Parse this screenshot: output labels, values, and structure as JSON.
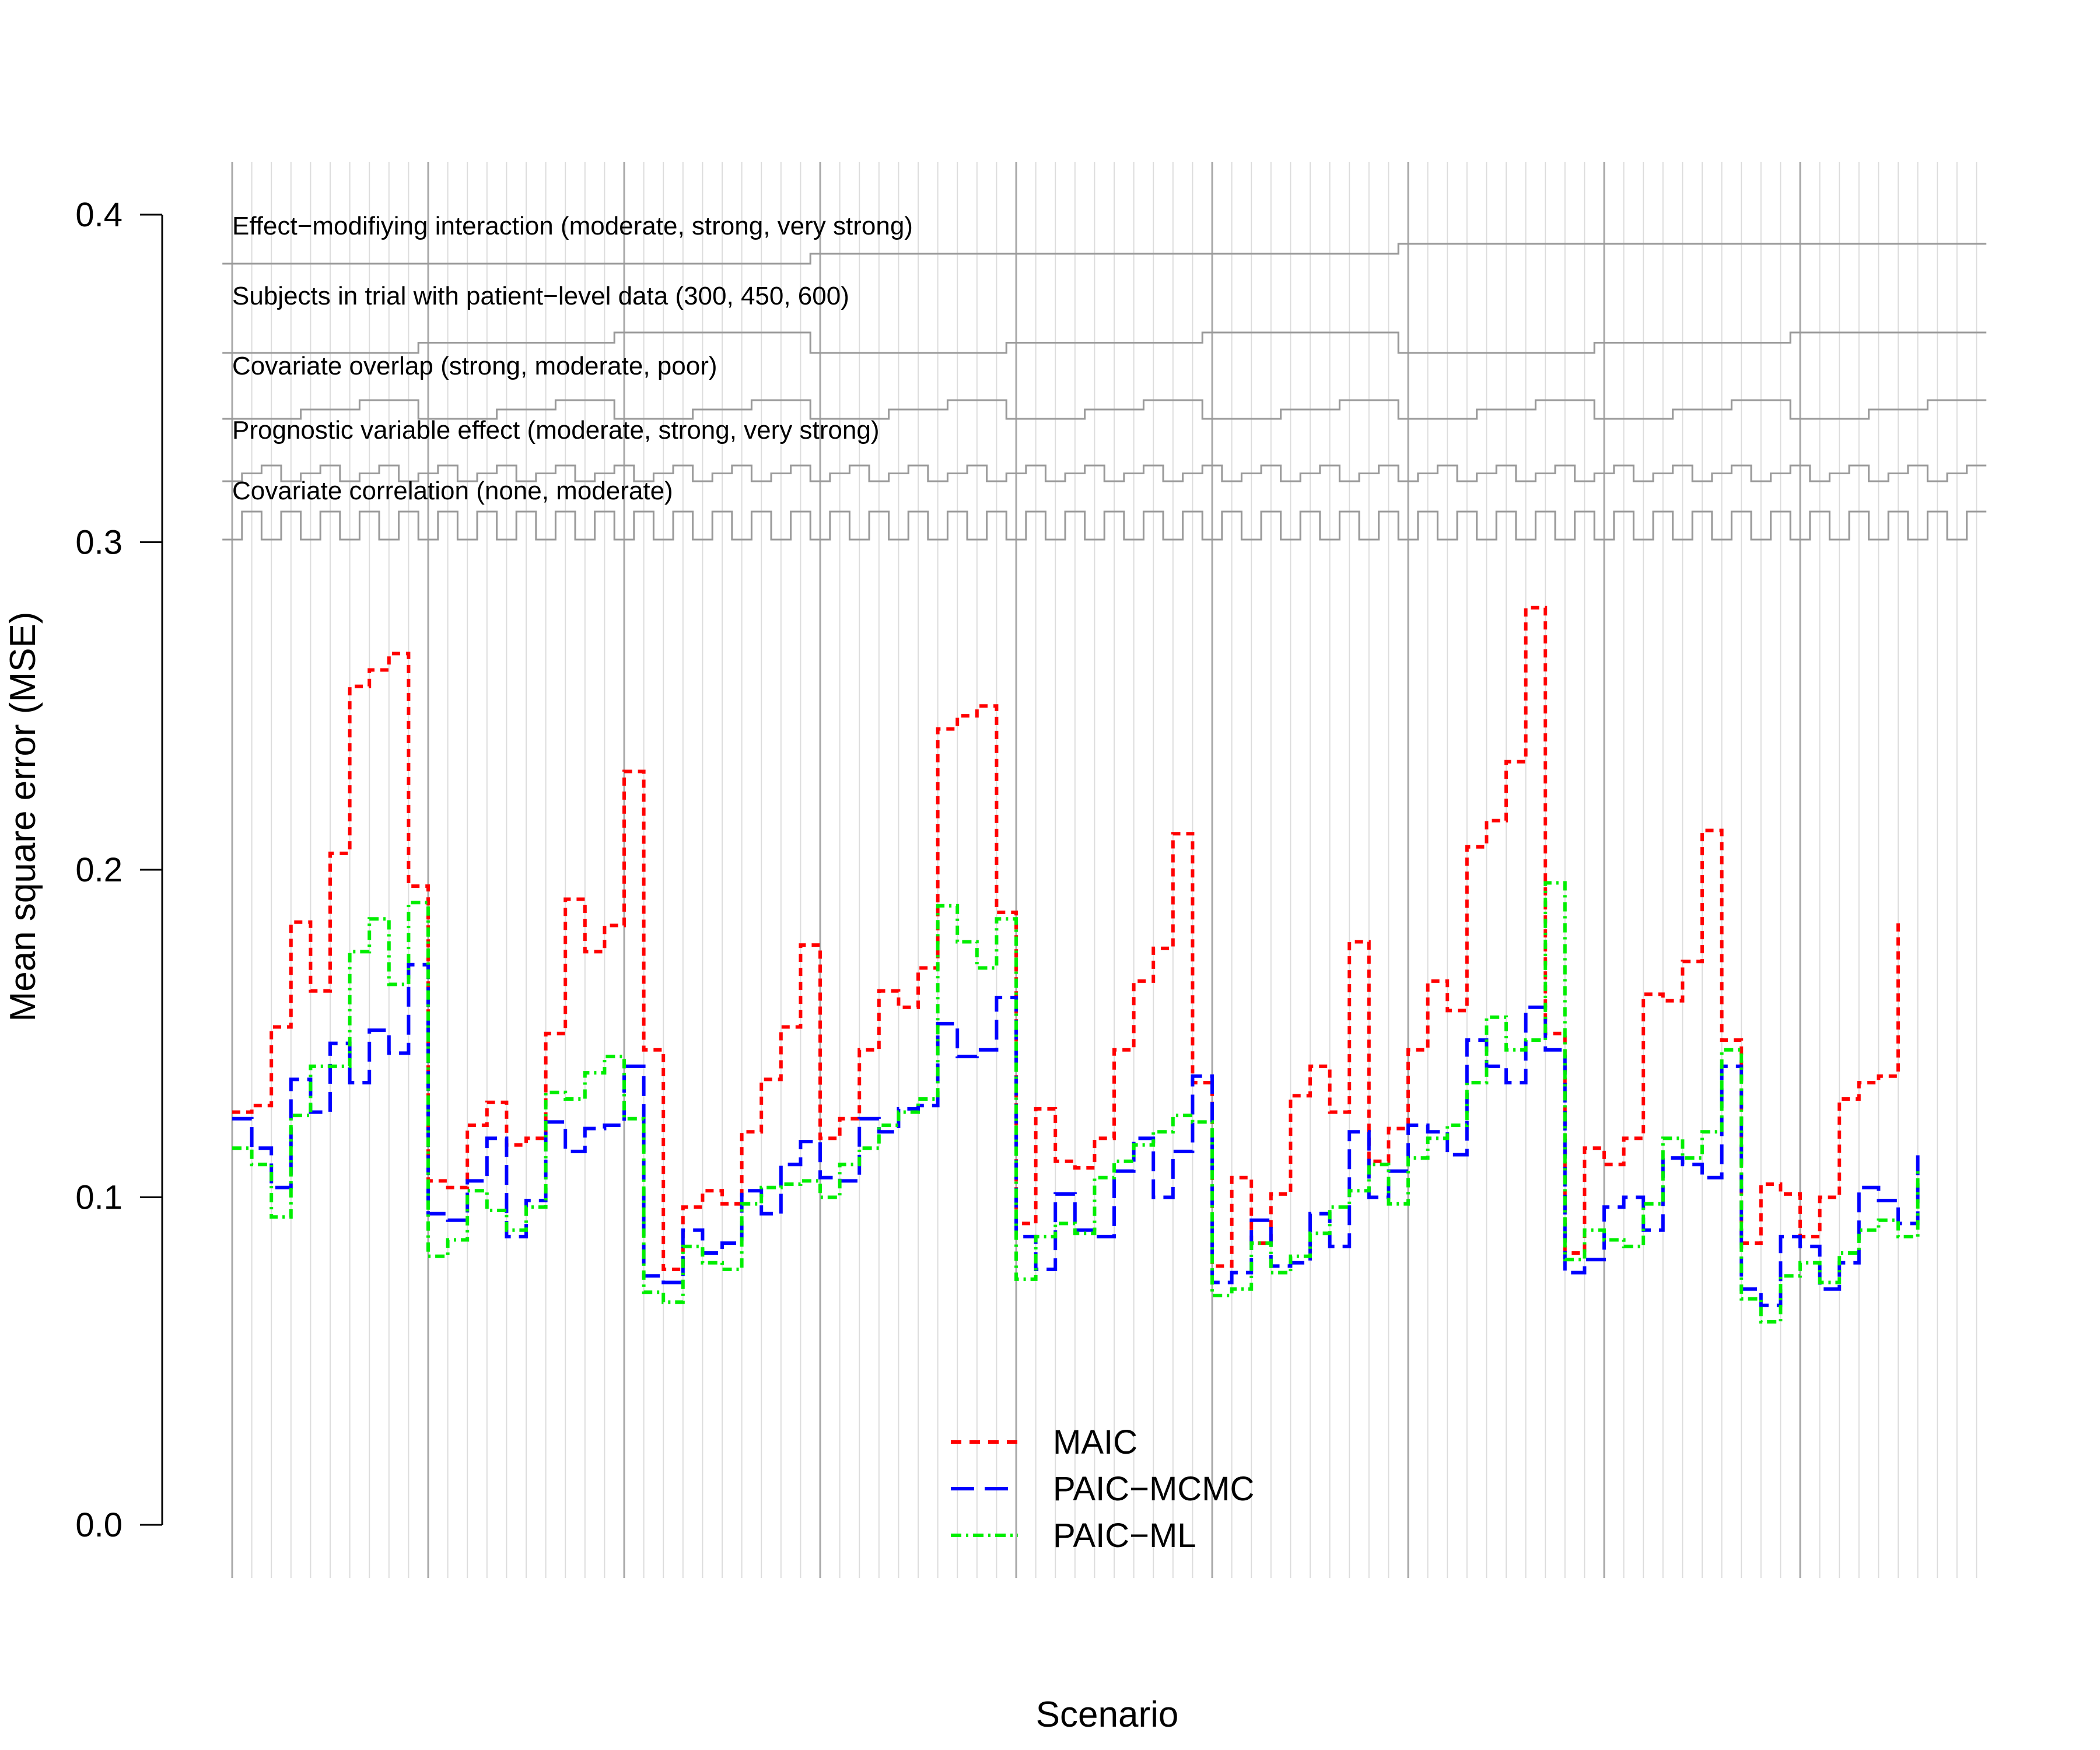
{
  "chart_data": {
    "type": "line",
    "xlabel": "Scenario",
    "ylabel": "Mean square error (MSE)",
    "xlim": [
      1,
      90
    ],
    "ylim": [
      0,
      0.4
    ],
    "yticks": [
      "0.0",
      "0.1",
      "0.2",
      "0.3",
      "0.4"
    ],
    "ytick_values": [
      0,
      0.1,
      0.2,
      0.3,
      0.4
    ],
    "grid": "vertical lines at each scenario",
    "legend_position": "bottom-center",
    "factors": [
      {
        "label": "Effect−modifiying interaction (moderate, strong, very strong)",
        "levels": 3,
        "block_size": 30
      },
      {
        "label": "Subjects in trial with patient−level data (300, 450, 600)",
        "levels": 3,
        "block_size": 10
      },
      {
        "label": "Covariate overlap (strong, moderate, poor)",
        "levels": 3,
        "block_size": 30
      },
      {
        "label": "Prognostic variable effect (moderate, strong, very strong)",
        "levels": 3,
        "block_size": 2
      },
      {
        "label": "Covariate correlation (none, moderate)",
        "levels": 2,
        "block_size": 1
      }
    ],
    "series": [
      {
        "name": "MAIC",
        "color": "#ff0000",
        "dash": "short",
        "values": [
          0.126,
          0.128,
          0.152,
          0.184,
          0.163,
          0.205,
          0.256,
          0.261,
          0.266,
          0.195,
          0.105,
          0.103,
          0.122,
          0.129,
          0.116,
          0.118,
          0.15,
          0.191,
          0.175,
          0.183,
          0.23,
          0.145,
          0.078,
          0.097,
          0.102,
          0.098,
          0.12,
          0.136,
          0.152,
          0.177,
          0.118,
          0.124,
          0.145,
          0.163,
          0.158,
          0.17,
          0.243,
          0.247,
          0.25,
          0.187,
          0.092,
          0.127,
          0.111,
          0.109,
          0.118,
          0.145,
          0.166,
          0.176,
          0.211,
          0.135,
          0.079,
          0.106,
          0.086,
          0.101,
          0.131,
          0.14,
          0.126,
          0.178,
          0.111,
          0.121,
          0.145,
          0.166,
          0.157,
          0.207,
          0.215,
          0.233,
          0.28,
          0.15,
          0.083,
          0.115,
          0.11,
          0.118,
          0.162,
          0.16,
          0.172,
          0.212,
          0.148,
          0.086,
          0.104,
          0.101,
          0.088,
          0.1,
          0.13,
          0.135,
          0.137,
          0.185
        ]
      },
      {
        "name": "PAIC−MCMC",
        "color": "#0000ff",
        "dash": "long",
        "values": [
          0.124,
          0.115,
          0.103,
          0.136,
          0.126,
          0.147,
          0.135,
          0.151,
          0.144,
          0.171,
          0.095,
          0.093,
          0.105,
          0.118,
          0.088,
          0.099,
          0.123,
          0.114,
          0.121,
          0.122,
          0.14,
          0.076,
          0.074,
          0.09,
          0.083,
          0.086,
          0.102,
          0.095,
          0.11,
          0.117,
          0.106,
          0.105,
          0.124,
          0.12,
          0.127,
          0.128,
          0.153,
          0.143,
          0.145,
          0.161,
          0.088,
          0.078,
          0.101,
          0.09,
          0.088,
          0.108,
          0.118,
          0.1,
          0.114,
          0.137,
          0.074,
          0.077,
          0.093,
          0.079,
          0.08,
          0.095,
          0.085,
          0.12,
          0.1,
          0.108,
          0.122,
          0.12,
          0.113,
          0.148,
          0.14,
          0.135,
          0.158,
          0.145,
          0.077,
          0.081,
          0.097,
          0.1,
          0.09,
          0.112,
          0.11,
          0.106,
          0.14,
          0.072,
          0.067,
          0.088,
          0.085,
          0.072,
          0.08,
          0.103,
          0.099,
          0.092,
          0.113
        ]
      },
      {
        "name": "PAIC−ML",
        "color": "#00ee00",
        "dash": "dashdot",
        "values": [
          0.115,
          0.11,
          0.094,
          0.125,
          0.14,
          0.14,
          0.175,
          0.185,
          0.165,
          0.19,
          0.082,
          0.087,
          0.102,
          0.096,
          0.09,
          0.097,
          0.132,
          0.13,
          0.138,
          0.143,
          0.124,
          0.071,
          0.068,
          0.085,
          0.08,
          0.078,
          0.098,
          0.103,
          0.104,
          0.105,
          0.1,
          0.11,
          0.115,
          0.122,
          0.126,
          0.13,
          0.189,
          0.178,
          0.17,
          0.185,
          0.075,
          0.088,
          0.092,
          0.089,
          0.106,
          0.111,
          0.116,
          0.12,
          0.125,
          0.123,
          0.07,
          0.072,
          0.086,
          0.077,
          0.082,
          0.089,
          0.097,
          0.102,
          0.11,
          0.098,
          0.112,
          0.118,
          0.122,
          0.135,
          0.155,
          0.145,
          0.148,
          0.196,
          0.081,
          0.09,
          0.087,
          0.085,
          0.098,
          0.118,
          0.112,
          0.12,
          0.145,
          0.069,
          0.062,
          0.076,
          0.08,
          0.074,
          0.083,
          0.09,
          0.093,
          0.088,
          0.108
        ]
      }
    ]
  }
}
